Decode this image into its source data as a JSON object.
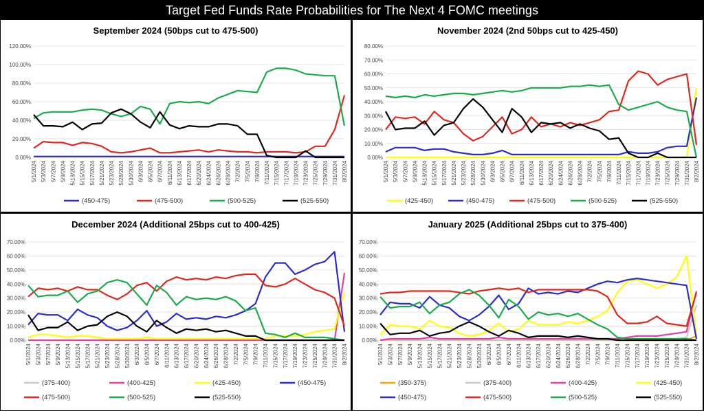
{
  "banner_title": "Target Fed Funds Rate Probabilities for The Next 4 FOMC meetings",
  "chart_data": [
    {
      "type": "line",
      "title": "September 2024 (50bps cut to 475-500)",
      "x": [
        "5/1/2024",
        "5/3/2024",
        "5/7/2024",
        "5/9/2024",
        "5/13/2024",
        "5/15/2024",
        "5/17/2024",
        "5/21/2024",
        "5/23/2024",
        "5/28/2024",
        "5/30/2024",
        "6/3/2024",
        "6/5/2024",
        "6/7/2024",
        "6/11/2024",
        "6/13/2024",
        "6/17/2024",
        "6/20/2024",
        "6/24/2024",
        "6/26/2024",
        "6/28/2024",
        "7/2/2024",
        "7/5/2024",
        "7/9/2024",
        "7/11/2024",
        "7/15/2024",
        "7/17/2024",
        "7/19/2024",
        "7/23/2024",
        "7/25/2024",
        "7/29/2024",
        "7/31/2024",
        "8/2/2024"
      ],
      "ylim": [
        0,
        120
      ],
      "yticks": [
        "0.00%",
        "20.00%",
        "40.00%",
        "60.00%",
        "80.00%",
        "100.00%",
        "120.00%"
      ],
      "legend_position": "bottom",
      "series": [
        {
          "name": "(450-475)",
          "color": "#2b2bcf",
          "values": [
            1,
            1,
            1,
            1,
            1,
            1,
            1,
            1,
            1,
            1,
            1,
            1,
            1,
            1,
            1,
            1,
            1,
            1,
            1,
            1,
            1,
            1,
            1,
            1,
            1,
            1,
            1,
            1,
            1,
            1,
            1,
            1,
            1
          ]
        },
        {
          "name": "(475-500)",
          "color": "#e3261c",
          "values": [
            10,
            17,
            16,
            16,
            13,
            16,
            15,
            12,
            6,
            5,
            6,
            8,
            10,
            5,
            5,
            6,
            7,
            8,
            6,
            8,
            7,
            6,
            6,
            5,
            6,
            6,
            6,
            5,
            6,
            12,
            12,
            30,
            67
          ]
        },
        {
          "name": "(500-525)",
          "color": "#1aaa4a",
          "values": [
            42,
            48,
            49,
            49,
            49,
            51,
            52,
            51,
            47,
            44,
            47,
            55,
            52,
            36,
            58,
            60,
            59,
            60,
            58,
            64,
            68,
            72,
            71,
            70,
            92,
            96,
            96,
            94,
            90,
            89,
            88,
            88,
            34
          ]
        },
        {
          "name": "(525-550)",
          "color": "#000000",
          "values": [
            46,
            34,
            34,
            33,
            38,
            30,
            36,
            37,
            48,
            52,
            47,
            38,
            32,
            49,
            35,
            31,
            34,
            33,
            33,
            36,
            36,
            34,
            25,
            25,
            2,
            0,
            0,
            0,
            7,
            0,
            0,
            0,
            0
          ]
        }
      ]
    },
    {
      "type": "line",
      "title": "November 2024 (2nd 50bps cut to 425-450)",
      "x": [
        "5/1/2024",
        "5/3/2024",
        "5/7/2024",
        "5/9/2024",
        "5/13/2024",
        "5/15/2024",
        "5/17/2024",
        "5/21/2024",
        "5/23/2024",
        "5/28/2024",
        "5/30/2024",
        "6/3/2024",
        "6/5/2024",
        "6/7/2024",
        "6/11/2024",
        "6/13/2024",
        "6/17/2024",
        "6/20/2024",
        "6/24/2024",
        "6/26/2024",
        "6/28/2024",
        "7/2/2024",
        "7/5/2024",
        "7/9/2024",
        "7/11/2024",
        "7/15/2024",
        "7/17/2024",
        "7/19/2024",
        "7/23/2024",
        "7/25/2024",
        "7/29/2024",
        "7/31/2024",
        "8/2/2024"
      ],
      "ylim": [
        0,
        80
      ],
      "yticks": [
        "0.00%",
        "10.00%",
        "20.00%",
        "30.00%",
        "40.00%",
        "50.00%",
        "60.00%",
        "70.00%",
        "80.00%"
      ],
      "legend_position": "bottom",
      "series": [
        {
          "name": "(425-450)",
          "color": "#ffff00",
          "values": [
            0,
            0,
            0,
            0,
            0,
            0,
            0,
            0,
            0,
            0,
            0,
            0,
            0,
            0,
            0,
            0,
            0,
            0,
            0,
            0,
            0,
            0,
            0,
            0,
            0,
            0,
            0,
            0,
            0,
            0,
            0,
            0,
            50
          ]
        },
        {
          "name": "(450-475)",
          "color": "#2b2bcf",
          "values": [
            4,
            7,
            7,
            7,
            5,
            6,
            6,
            4,
            3,
            2,
            2,
            3,
            5,
            2,
            2,
            2,
            2,
            2,
            2,
            2,
            2,
            2,
            2,
            2,
            2,
            4,
            3,
            3,
            4,
            7,
            8,
            8,
            43
          ]
        },
        {
          "name": "(475-500)",
          "color": "#e3261c",
          "values": [
            20,
            29,
            28,
            29,
            24,
            33,
            27,
            25,
            17,
            12,
            15,
            22,
            29,
            17,
            20,
            29,
            22,
            24,
            22,
            25,
            23,
            25,
            27,
            33,
            34,
            55,
            62,
            60,
            52,
            56,
            58,
            60,
            9
          ]
        },
        {
          "name": "(500-525)",
          "color": "#1aaa4a",
          "values": [
            44,
            43,
            44,
            43,
            45,
            44,
            45,
            46,
            46,
            45,
            46,
            47,
            48,
            47,
            48,
            50,
            50,
            50,
            50,
            51,
            51,
            52,
            51,
            52,
            38,
            34,
            36,
            38,
            40,
            36,
            34,
            33,
            0
          ]
        },
        {
          "name": "(525-550)",
          "color": "#000000",
          "values": [
            33,
            20,
            21,
            21,
            26,
            16,
            23,
            25,
            35,
            42,
            36,
            27,
            18,
            35,
            29,
            18,
            25,
            24,
            25,
            21,
            24,
            21,
            19,
            13,
            14,
            3,
            0,
            0,
            3,
            0,
            0,
            0,
            0
          ]
        }
      ]
    },
    {
      "type": "line",
      "title": "December 2024 (Additional 25bps cut to 400-425)",
      "x": [
        "5/1/2024",
        "5/3/2024",
        "5/7/2024",
        "5/9/2024",
        "5/13/2024",
        "5/15/2024",
        "5/17/2024",
        "5/21/2024",
        "5/23/2024",
        "5/28/2024",
        "5/30/2024",
        "6/3/2024",
        "6/5/2024",
        "6/7/2024",
        "6/11/2024",
        "6/13/2024",
        "6/17/2024",
        "6/20/2024",
        "6/24/2024",
        "6/26/2024",
        "6/28/2024",
        "7/2/2024",
        "7/5/2024",
        "7/9/2024",
        "7/11/2024",
        "7/15/2024",
        "7/17/2024",
        "7/19/2024",
        "7/23/2024",
        "7/25/2024",
        "7/29/2024",
        "7/31/2024",
        "8/2/2024"
      ],
      "ylim": [
        0,
        70
      ],
      "yticks": [
        "0.00%",
        "10.00%",
        "20.00%",
        "30.00%",
        "40.00%",
        "50.00%",
        "60.00%",
        "70.00%"
      ],
      "legend_position": "bottom",
      "series": [
        {
          "name": "(375-400)",
          "color": "#c8c8c8",
          "values": [
            0,
            0,
            0,
            0,
            0,
            0,
            0,
            0,
            0,
            0,
            0,
            0,
            0,
            0,
            0,
            0,
            0,
            0,
            0,
            0,
            0,
            0,
            0,
            0,
            0,
            0,
            0,
            0,
            0,
            0,
            0,
            0,
            0
          ]
        },
        {
          "name": "(400-425)",
          "color": "#e040a0",
          "values": [
            0,
            0,
            0,
            0,
            0,
            0,
            0,
            0,
            0,
            0,
            0,
            0,
            0,
            0,
            0,
            0,
            0,
            0,
            0,
            0,
            0,
            0,
            0,
            0,
            0,
            0,
            0,
            0,
            0,
            0,
            0,
            0,
            48
          ]
        },
        {
          "name": "(425-450)",
          "color": "#ffff00",
          "values": [
            2,
            4,
            4,
            3,
            2,
            3,
            3,
            2,
            1,
            1,
            1,
            1,
            2,
            1,
            1,
            1,
            1,
            1,
            1,
            1,
            1,
            1,
            1,
            1,
            1,
            3,
            3,
            3,
            4,
            6,
            7,
            8,
            34
          ]
        },
        {
          "name": "(450-475)",
          "color": "#2b2bcf",
          "values": [
            11,
            19,
            18,
            18,
            14,
            22,
            18,
            16,
            10,
            7,
            9,
            14,
            21,
            10,
            13,
            19,
            15,
            16,
            15,
            17,
            16,
            18,
            21,
            26,
            45,
            55,
            55,
            47,
            50,
            54,
            56,
            63,
            6
          ]
        },
        {
          "name": "(475-500)",
          "color": "#e3261c",
          "values": [
            31,
            37,
            36,
            37,
            35,
            38,
            36,
            36,
            32,
            29,
            33,
            39,
            41,
            35,
            42,
            45,
            43,
            44,
            43,
            45,
            44,
            46,
            47,
            47,
            39,
            38,
            40,
            44,
            40,
            36,
            34,
            30,
            10
          ]
        },
        {
          "name": "(500-525)",
          "color": "#1aaa4a",
          "values": [
            39,
            31,
            32,
            32,
            35,
            27,
            33,
            35,
            41,
            43,
            41,
            33,
            25,
            39,
            34,
            25,
            31,
            29,
            30,
            29,
            31,
            28,
            21,
            23,
            5,
            4,
            2,
            5,
            2,
            2,
            2,
            1,
            0
          ]
        },
        {
          "name": "(525-550)",
          "color": "#000000",
          "values": [
            18,
            7,
            9,
            9,
            13,
            7,
            10,
            11,
            17,
            20,
            17,
            10,
            6,
            14,
            9,
            5,
            8,
            7,
            8,
            6,
            7,
            5,
            3,
            3,
            0,
            0,
            0,
            0,
            0,
            0,
            0,
            0,
            0
          ]
        }
      ]
    },
    {
      "type": "line",
      "title": "January 2025 (Additional 25bps cut to 375-400)",
      "x": [
        "5/1/2024",
        "5/3/2024",
        "5/7/2024",
        "5/9/2024",
        "5/13/2024",
        "5/15/2024",
        "5/17/2024",
        "5/21/2024",
        "5/23/2024",
        "5/28/2024",
        "5/30/2024",
        "6/3/2024",
        "6/5/2024",
        "6/7/2024",
        "6/11/2024",
        "6/13/2024",
        "6/17/2024",
        "6/20/2024",
        "6/24/2024",
        "6/26/2024",
        "6/28/2024",
        "7/2/2024",
        "7/5/2024",
        "7/9/2024",
        "7/11/2024",
        "7/15/2024",
        "7/17/2024",
        "7/19/2024",
        "7/23/2024",
        "7/25/2024",
        "7/29/2024",
        "7/31/2024",
        "8/2/2024"
      ],
      "ylim": [
        0,
        70
      ],
      "yticks": [
        "0.00%",
        "10.00%",
        "20.00%",
        "30.00%",
        "40.00%",
        "50.00%",
        "60.00%",
        "70.00%"
      ],
      "legend_position": "bottom",
      "series": [
        {
          "name": "(350-375)",
          "color": "#f0a800",
          "values": [
            0,
            0,
            0,
            0,
            0,
            0,
            0,
            0,
            0,
            0,
            0,
            0,
            0,
            0,
            0,
            0,
            0,
            0,
            0,
            0,
            0,
            0,
            0,
            0,
            0,
            0,
            0,
            0,
            0,
            0,
            0,
            0,
            3
          ]
        },
        {
          "name": "(375-400)",
          "color": "#c8c8c8",
          "values": [
            0,
            0,
            0,
            0,
            0,
            0,
            0,
            0,
            0,
            0,
            0,
            0,
            0,
            0,
            0,
            0,
            0,
            0,
            0,
            0,
            0,
            0,
            0,
            0,
            0,
            0,
            1,
            1,
            1,
            1,
            1,
            2,
            25
          ]
        },
        {
          "name": "(400-425)",
          "color": "#e040a0",
          "values": [
            0,
            1,
            1,
            1,
            1,
            2,
            1,
            1,
            1,
            1,
            1,
            1,
            2,
            1,
            1,
            1,
            1,
            1,
            1,
            1,
            1,
            1,
            1,
            1,
            1,
            2,
            3,
            3,
            3,
            4,
            5,
            6,
            35
          ]
        },
        {
          "name": "(425-450)",
          "color": "#ffff00",
          "values": [
            4,
            11,
            10,
            10,
            8,
            14,
            10,
            9,
            5,
            3,
            4,
            7,
            12,
            6,
            8,
            14,
            11,
            11,
            11,
            13,
            12,
            14,
            17,
            21,
            34,
            42,
            43,
            40,
            37,
            40,
            45,
            60,
            3
          ]
        },
        {
          "name": "(450-475)",
          "color": "#2b2bcf",
          "values": [
            18,
            27,
            26,
            26,
            23,
            31,
            25,
            23,
            17,
            14,
            18,
            24,
            32,
            22,
            26,
            37,
            33,
            34,
            33,
            35,
            34,
            37,
            40,
            42,
            41,
            43,
            44,
            43,
            42,
            41,
            40,
            39,
            1
          ]
        },
        {
          "name": "(475-500)",
          "color": "#e3261c",
          "values": [
            33,
            34,
            34,
            35,
            35,
            35,
            35,
            35,
            34,
            33,
            35,
            36,
            37,
            36,
            37,
            34,
            36,
            36,
            36,
            36,
            36,
            36,
            35,
            31,
            18,
            12,
            12,
            13,
            17,
            12,
            11,
            10,
            34
          ]
        },
        {
          "name": "(500-525)",
          "color": "#1aaa4a",
          "values": [
            31,
            23,
            24,
            24,
            27,
            19,
            25,
            27,
            33,
            36,
            32,
            25,
            16,
            29,
            24,
            15,
            20,
            18,
            19,
            17,
            19,
            15,
            11,
            8,
            2,
            1,
            1,
            1,
            1,
            1,
            1,
            1,
            0
          ]
        },
        {
          "name": "(525-550)",
          "color": "#000000",
          "values": [
            12,
            4,
            5,
            5,
            7,
            3,
            5,
            6,
            10,
            13,
            10,
            6,
            3,
            7,
            5,
            2,
            3,
            3,
            3,
            2,
            3,
            2,
            1,
            1,
            0,
            0,
            0,
            0,
            0,
            0,
            0,
            0,
            0
          ]
        }
      ]
    }
  ]
}
